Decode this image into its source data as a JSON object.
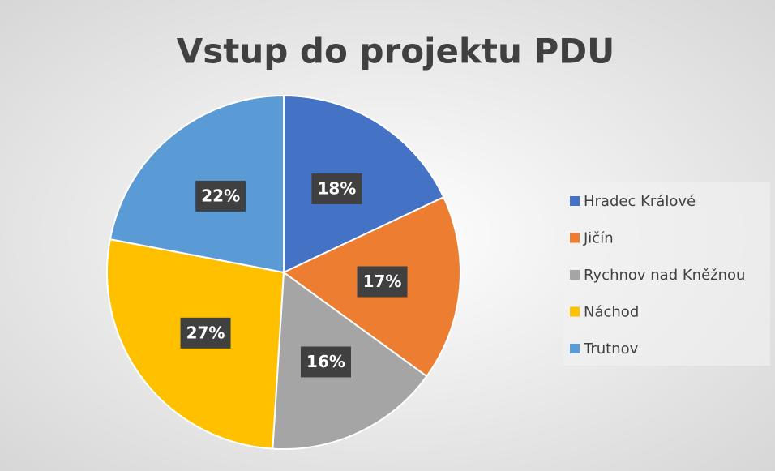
{
  "chart_data": {
    "type": "pie",
    "title": "Vstup do projektu PDU",
    "categories": [
      "Hradec Králové",
      "Jičín",
      "Rychnov nad Kněžnou",
      "Náchod",
      "Trutnov"
    ],
    "values": [
      18,
      17,
      16,
      27,
      22
    ],
    "value_labels": [
      "18%",
      "17%",
      "16%",
      "27%",
      "22%"
    ],
    "colors": [
      "#4472c4",
      "#ed7d31",
      "#a5a5a5",
      "#ffc000",
      "#5b9bd5"
    ],
    "legend": "right"
  }
}
